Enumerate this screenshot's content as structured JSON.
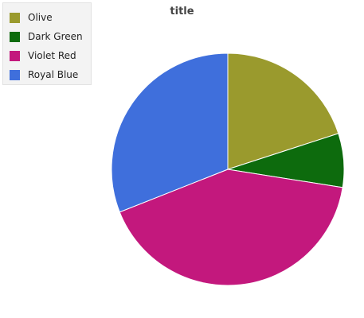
{
  "chart_data": {
    "type": "pie",
    "title": "title",
    "categories": [
      "Olive",
      "Dark Green",
      "Violet Red",
      "Royal Blue"
    ],
    "values": [
      20,
      7.5,
      41.5,
      31
    ],
    "colors": [
      "#9a9a2d",
      "#0d6b0d",
      "#c3187d",
      "#3f6fdc"
    ],
    "start_angle_deg": 90,
    "direction": "clockwise",
    "legend": {
      "position": "top-left",
      "items": [
        {
          "label": "Olive",
          "color": "#9a9a2d"
        },
        {
          "label": "Dark Green",
          "color": "#0d6b0d"
        },
        {
          "label": "Violet Red",
          "color": "#c3187d"
        },
        {
          "label": "Royal Blue",
          "color": "#3f6fdc"
        }
      ]
    }
  }
}
